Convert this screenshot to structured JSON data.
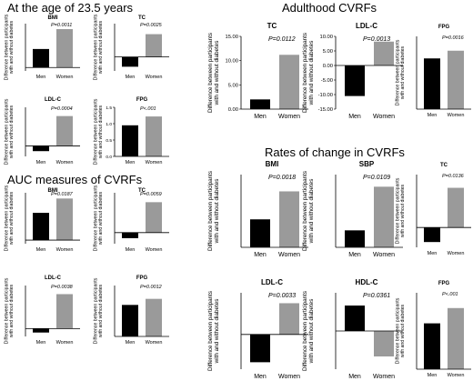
{
  "sections": {
    "age": "At the age of 23.5 years",
    "auc": "AUC measures of CVRFs",
    "adult": "Adulthood CVRFs",
    "rates": "Rates of change in CVRFs"
  },
  "ylabel_text": "Difference between participants with and without diabetes",
  "chart_data": [
    {
      "type": "bar",
      "group": "At the age of 23.5 years",
      "title": "BMI",
      "p": "P=0.0011",
      "categories": [
        "Men",
        "Women"
      ],
      "values": [
        2.7,
        5.6
      ],
      "colors": [
        "#000000",
        "#9a9a9a"
      ],
      "ylim": [
        -0.5,
        6.4
      ],
      "ticks": [],
      "tick_labels": [],
      "ylabel": "Difference between participants with and without diabetes"
    },
    {
      "type": "bar",
      "group": "At the age of 23.5 years",
      "title": "TC",
      "p": "P=0.0025",
      "categories": [
        "Men",
        "Women"
      ],
      "values": [
        -0.28,
        0.65
      ],
      "colors": [
        "#000000",
        "#9a9a9a"
      ],
      "ylim": [
        -0.4,
        0.95
      ],
      "ticks": [],
      "tick_labels": [],
      "ylabel": "Difference between participants with and without diabetes"
    },
    {
      "type": "bar",
      "group": "At the age of 23.5 years",
      "title": "LDL-C",
      "p": "P=0.0004",
      "categories": [
        "Men",
        "Women"
      ],
      "values": [
        -0.06,
        0.34
      ],
      "colors": [
        "#000000",
        "#9a9a9a"
      ],
      "ylim": [
        -0.12,
        0.44
      ],
      "ticks": [],
      "tick_labels": [],
      "ylabel": "Difference between participants with and without diabetes"
    },
    {
      "type": "bar",
      "group": "At the age of 23.5 years",
      "title": "FPG",
      "p": "P<.001",
      "categories": [
        "Men",
        "Women"
      ],
      "values": [
        0.95,
        1.22
      ],
      "colors": [
        "#000000",
        "#9a9a9a"
      ],
      "ylim": [
        0,
        1.5
      ],
      "ticks": [
        0,
        0.5,
        1.0,
        1.5
      ],
      "tick_labels": [
        "0.0",
        "0.5",
        "1.0",
        "1.5"
      ],
      "ylabel": "Difference between participants with and without diabetes"
    },
    {
      "type": "bar",
      "group": "AUC measures of CVRFs",
      "title": "BMI",
      "p": "P=0.0187",
      "categories": [
        "Men",
        "Women"
      ],
      "values": [
        3.8,
        5.8
      ],
      "colors": [
        "#000000",
        "#9a9a9a"
      ],
      "ylim": [
        -0.5,
        6.6
      ],
      "ticks": [],
      "tick_labels": [],
      "ylabel": "Difference between participants with and without diabetes"
    },
    {
      "type": "bar",
      "group": "AUC measures of CVRFs",
      "title": "TC",
      "p": "P=0.0059",
      "categories": [
        "Men",
        "Women"
      ],
      "values": [
        -0.1,
        0.55
      ],
      "colors": [
        "#000000",
        "#9a9a9a"
      ],
      "ylim": [
        -0.2,
        0.72
      ],
      "ticks": [],
      "tick_labels": [],
      "ylabel": "Difference between participants with and without diabetes"
    },
    {
      "type": "bar",
      "group": "AUC measures of CVRFs",
      "title": "LDL-C",
      "p": "P=0.0038",
      "categories": [
        "Men",
        "Women"
      ],
      "values": [
        -0.05,
        0.44
      ],
      "colors": [
        "#000000",
        "#9a9a9a"
      ],
      "ylim": [
        -0.1,
        0.55
      ],
      "ticks": [],
      "tick_labels": [],
      "ylabel": "Difference between participants with and without diabetes"
    },
    {
      "type": "bar",
      "group": "AUC measures of CVRFs",
      "title": "FPG",
      "p": "P=0.0012",
      "categories": [
        "Men",
        "Women"
      ],
      "values": [
        1.3,
        1.55
      ],
      "colors": [
        "#000000",
        "#9a9a9a"
      ],
      "ylim": [
        0,
        2.1
      ],
      "ticks": [],
      "tick_labels": [],
      "ylabel": "Difference between participants with and without diabetes"
    },
    {
      "type": "bar",
      "group": "Adulthood CVRFs",
      "title": "TC",
      "p": "P=0.0112",
      "categories": [
        "Men",
        "Women"
      ],
      "values": [
        2.0,
        11.2
      ],
      "colors": [
        "#000000",
        "#9a9a9a"
      ],
      "ylim": [
        0,
        15
      ],
      "ticks": [
        0,
        5,
        10,
        15
      ],
      "tick_labels": [
        "0.00",
        "5.00",
        "10.00",
        "15.00"
      ],
      "ylabel": "Difference between participants with and without diabetes"
    },
    {
      "type": "bar",
      "group": "Adulthood CVRFs",
      "title": "LDL-C",
      "p": "P=0.0013",
      "categories": [
        "Men",
        "Women"
      ],
      "values": [
        -10.5,
        8.2
      ],
      "colors": [
        "#000000",
        "#9a9a9a"
      ],
      "ylim": [
        -15,
        10
      ],
      "ticks": [
        -15,
        -10,
        -5,
        0,
        5,
        10
      ],
      "tick_labels": [
        "-15.00",
        "-10.00",
        "-5.00",
        "0.00",
        "5.00",
        "10.00"
      ],
      "ylabel": "Difference between participants with and without diabetes"
    },
    {
      "type": "bar",
      "group": "Adulthood CVRFs",
      "title": "FPG",
      "p": "P=0.0016",
      "categories": [
        "Men",
        "Women"
      ],
      "values": [
        4.6,
        5.3
      ],
      "colors": [
        "#000000",
        "#9a9a9a"
      ],
      "ylim": [
        0,
        6.6
      ],
      "ticks": [],
      "tick_labels": [],
      "ylabel": "Difference between participants with and without diabetes"
    },
    {
      "type": "bar",
      "group": "Rates of change in CVRFs",
      "title": "BMI",
      "p": "P=0.0018",
      "categories": [
        "Men",
        "Women"
      ],
      "values": [
        0.1,
        0.2
      ],
      "colors": [
        "#000000",
        "#9a9a9a"
      ],
      "ylim": [
        0,
        0.26
      ],
      "ticks": [],
      "tick_labels": [],
      "ylabel": "Difference between participants with and without diabetes"
    },
    {
      "type": "bar",
      "group": "Rates of change in CVRFs",
      "title": "SBP",
      "p": "P=0.0109",
      "categories": [
        "Men",
        "Women"
      ],
      "values": [
        0.07,
        0.25
      ],
      "colors": [
        "#000000",
        "#9a9a9a"
      ],
      "ylim": [
        0,
        0.3
      ],
      "ticks": [],
      "tick_labels": [],
      "ylabel": "Difference between participants with and without diabetes"
    },
    {
      "type": "bar",
      "group": "Rates of change in CVRFs",
      "title": "TC",
      "p": "P=0.0136",
      "categories": [
        "Men",
        "Women"
      ],
      "values": [
        -0.11,
        0.3
      ],
      "colors": [
        "#000000",
        "#9a9a9a"
      ],
      "ylim": [
        -0.15,
        0.4
      ],
      "ticks": [],
      "tick_labels": [],
      "ylabel": "Difference between participants with and without diabetes"
    },
    {
      "type": "bar",
      "group": "Rates of change in CVRFs",
      "title": "LDL-C",
      "p": "P=0.0033",
      "categories": [
        "Men",
        "Women"
      ],
      "values": [
        -0.16,
        0.18
      ],
      "colors": [
        "#000000",
        "#9a9a9a"
      ],
      "ylim": [
        -0.2,
        0.24
      ],
      "ticks": [],
      "tick_labels": [],
      "ylabel": "Difference between participants with and without diabetes"
    },
    {
      "type": "bar",
      "group": "Rates of change in CVRFs",
      "title": "HDL-C",
      "p": "P=0.0361",
      "categories": [
        "Men",
        "Women"
      ],
      "values": [
        0.04,
        -0.04
      ],
      "colors": [
        "#000000",
        "#9a9a9a"
      ],
      "ylim": [
        -0.06,
        0.06
      ],
      "ticks": [],
      "tick_labels": [],
      "ylabel": "Difference between participants with and without diabetes"
    },
    {
      "type": "bar",
      "group": "Rates of change in CVRFs",
      "title": "FPG",
      "p": "P<.001",
      "categories": [
        "Men",
        "Women"
      ],
      "values": [
        0.09,
        0.12
      ],
      "colors": [
        "#000000",
        "#9a9a9a"
      ],
      "ylim": [
        0,
        0.15
      ],
      "ticks": [],
      "tick_labels": [],
      "ylabel": "Difference between participants with and without diabetes"
    }
  ]
}
